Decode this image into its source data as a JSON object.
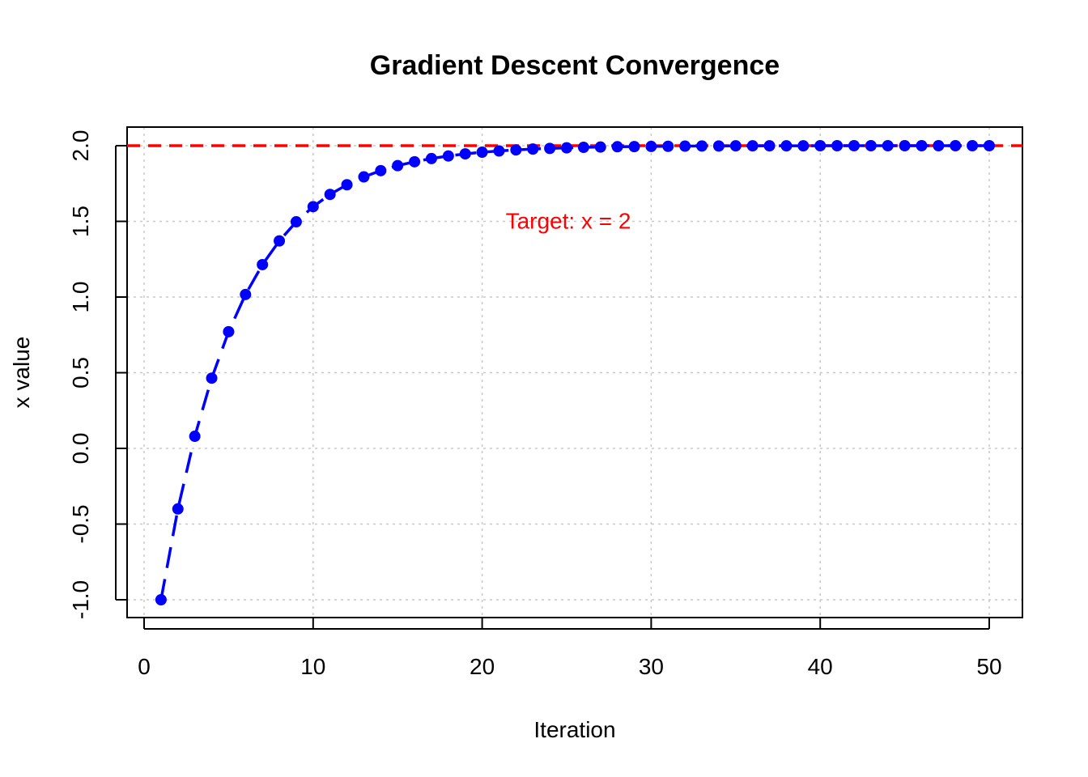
{
  "chart_data": {
    "type": "line",
    "title": "Gradient Descent Convergence",
    "xlabel": "Iteration",
    "ylabel": "x value",
    "xlim": [
      0,
      50
    ],
    "ylim": [
      -1.0,
      2.0
    ],
    "x_ticks": [
      "0",
      "10",
      "20",
      "30",
      "40",
      "50"
    ],
    "y_ticks": [
      "-1.0",
      "-0.5",
      "0.0",
      "0.5",
      "1.0",
      "1.5",
      "2.0"
    ],
    "grid": true,
    "series": [
      {
        "line_style": "dashed with points",
        "color": "#0000ff",
        "x": [
          1,
          2,
          3,
          4,
          5,
          6,
          7,
          8,
          9,
          10,
          11,
          12,
          13,
          14,
          15,
          16,
          17,
          18,
          19,
          20,
          21,
          22,
          23,
          24,
          25,
          26,
          27,
          28,
          29,
          30,
          31,
          32,
          33,
          34,
          35,
          36,
          37,
          38,
          39,
          40,
          41,
          42,
          43,
          44,
          45,
          46,
          47,
          48,
          49,
          50
        ],
        "values": [
          -1.0,
          -0.4,
          0.08,
          0.464,
          0.771,
          1.017,
          1.214,
          1.371,
          1.497,
          1.597,
          1.678,
          1.742,
          1.794,
          1.835,
          1.868,
          1.894,
          1.915,
          1.932,
          1.946,
          1.957,
          1.965,
          1.972,
          1.978,
          1.982,
          1.986,
          1.989,
          1.991,
          1.993,
          1.994,
          1.995,
          1.996,
          1.997,
          1.998,
          1.998,
          1.999,
          1.999,
          1.999,
          1.999,
          1.999,
          2.0,
          2.0,
          2.0,
          2.0,
          2.0,
          2.0,
          2.0,
          2.0,
          2.0,
          2.0,
          2.0
        ]
      }
    ],
    "reference_line": {
      "y": 2.0,
      "color": "#ff0000",
      "style": "dashed"
    },
    "annotation": {
      "text": "Target: x = 2",
      "x": 25,
      "y": 1.5,
      "color": "#ff0000"
    }
  }
}
